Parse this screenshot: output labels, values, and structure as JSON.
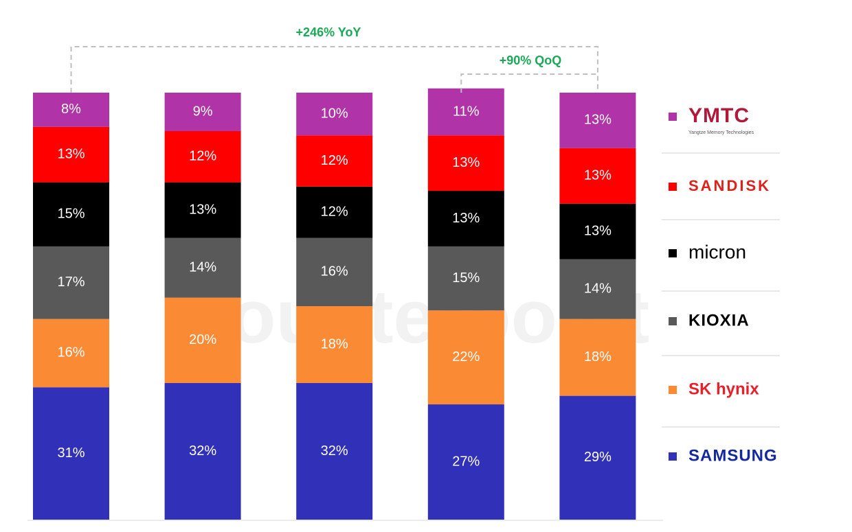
{
  "chart_data": {
    "type": "stacked_bar",
    "categories": [
      null,
      null,
      null,
      null,
      null
    ],
    "ylim": [
      0,
      100
    ],
    "series": [
      {
        "name": "SAMSUNG",
        "color": "#3130b8",
        "values": [
          31,
          32,
          32,
          27,
          29
        ],
        "value_labels": [
          "31%",
          "32%",
          "32%",
          "27%",
          "29%"
        ]
      },
      {
        "name": "SK hynix",
        "color": "#fb8a34",
        "values": [
          16,
          20,
          18,
          22,
          18
        ],
        "value_labels": [
          "16%",
          "20%",
          "18%",
          "22%",
          "18%"
        ]
      },
      {
        "name": "KIOXIA",
        "color": "#595959",
        "values": [
          17,
          14,
          16,
          15,
          14
        ],
        "value_labels": [
          "17%",
          "14%",
          "16%",
          "15%",
          "14%"
        ]
      },
      {
        "name": "micron",
        "color": "#000000",
        "values": [
          15,
          13,
          12,
          13,
          13
        ],
        "value_labels": [
          "15%",
          "13%",
          "12%",
          "13%",
          "13%"
        ]
      },
      {
        "name": "SANDISK",
        "color": "#ff0000",
        "values": [
          13,
          12,
          12,
          13,
          13
        ],
        "value_labels": [
          "13%",
          "12%",
          "12%",
          "13%",
          "13%"
        ]
      },
      {
        "name": "YMTC",
        "color": "#b034a8",
        "values": [
          8,
          9,
          10,
          11,
          13
        ],
        "value_labels": [
          "8%",
          "9%",
          "10%",
          "11%",
          "13%"
        ]
      }
    ],
    "ymtc_tagline": "Yangtze Memory Technologies",
    "annotations": [
      "+246% YoY",
      "+90% QoQ"
    ],
    "annotation_color": "#1aaa55",
    "watermark": "Counterpoint"
  }
}
